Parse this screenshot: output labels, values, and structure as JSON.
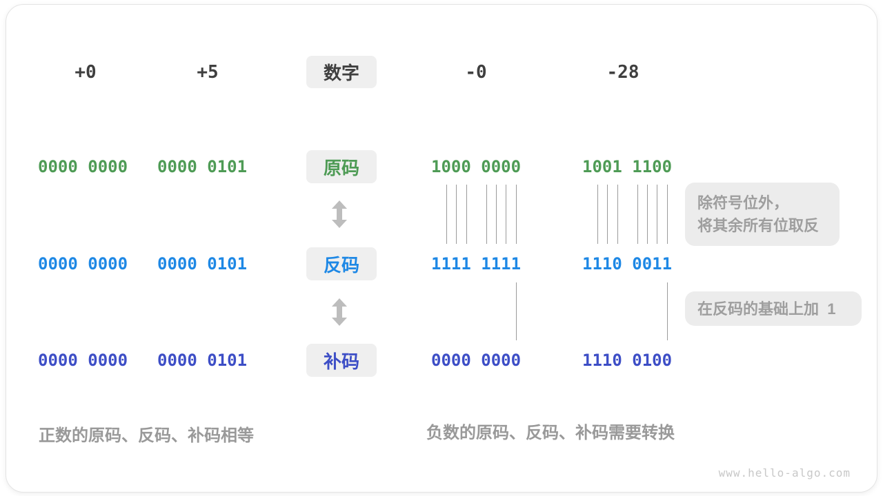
{
  "headers": {
    "col1": "+0",
    "col2": "+5",
    "number_label": "数字",
    "col3": "-0",
    "col4": "-28"
  },
  "row_labels": {
    "sign": "原码",
    "ones": "反码",
    "twos": "补码"
  },
  "rows": {
    "sign": {
      "col1": "0000 0000",
      "col2": "0000 0101",
      "col3": "1000 0000",
      "col4": "1001 1100"
    },
    "ones": {
      "col1": "0000 0000",
      "col2": "0000 0101",
      "col3": "1111 1111",
      "col4": "1110 0011"
    },
    "twos": {
      "col1": "0000 0000",
      "col2": "0000 0101",
      "col3": "0000 0000",
      "col4": "1110 0100"
    }
  },
  "annotations": {
    "invert_line1": "除符号位外，",
    "invert_line2": "将其余所有位取反",
    "add_one": "在反码的基础上加  1"
  },
  "captions": {
    "positive": "正数的原码、反码、补码相等",
    "negative": "负数的原码、反码、补码需要转换"
  },
  "watermark": "www.hello-algo.com",
  "colors": {
    "sign_code": "#4E9B55",
    "ones_code": "#1E88E5",
    "twos_code": "#3D4EC6",
    "header_text": "#3F3F3F",
    "annotation_text": "#9E9E9E",
    "box_bg": "#EFEFEF"
  }
}
